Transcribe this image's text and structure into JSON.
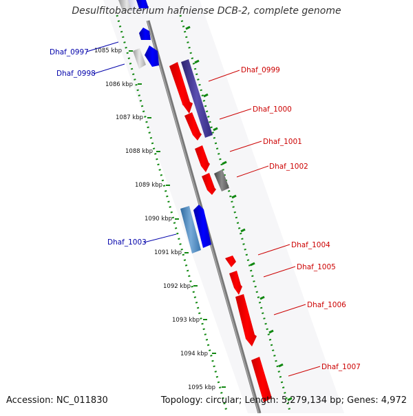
{
  "title": "Desulfitobacterium hafniense DCB-2, complete genome",
  "accession": "Accession: NC_011830",
  "topology_summary": "Topology: circular; Length: 5,279,134 bp; Genes: 4,972",
  "colors": {
    "forward_gene": "#0000ff",
    "reverse_gene": "#ff0000",
    "backbone": "#888888",
    "tick": "#118811",
    "label_forward": "#0000aa",
    "label_reverse": "#cc0000"
  },
  "scale_labels": [
    "1085 kbp",
    "1086 kbp",
    "1087 kbp",
    "1088 kbp",
    "1089 kbp",
    "1090 kbp",
    "1091 kbp",
    "1092 kbp",
    "1093 kbp",
    "1094 kbp",
    "1095 kbp"
  ],
  "gene_labels": {
    "forward": [
      "Dhaf_0997",
      "Dhaf_0998",
      "Dhaf_1003"
    ],
    "reverse": [
      "Dhaf_0999",
      "Dhaf_1000",
      "Dhaf_1001",
      "Dhaf_1002",
      "Dhaf_1004",
      "Dhaf_1005",
      "Dhaf_1006",
      "Dhaf_1007"
    ]
  }
}
